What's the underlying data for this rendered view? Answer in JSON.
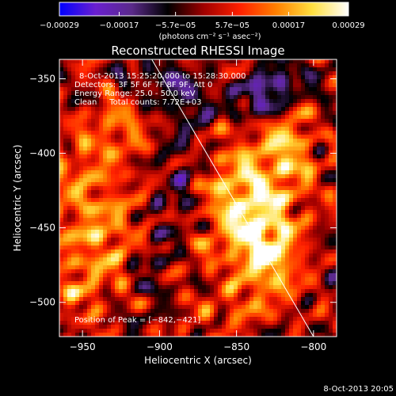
{
  "chart_data": {
    "type": "heatmap",
    "title": "Reconstructed RHESSI Image",
    "xlabel": "Heliocentric X (arcsec)",
    "ylabel": "Heliocentric Y (arcsec)",
    "xlim": [
      -965,
      -785
    ],
    "ylim": [
      -523,
      -337
    ],
    "x_ticks": [
      -950,
      -900,
      -850,
      -800
    ],
    "x_tick_labels": [
      "−950",
      "−900",
      "−850",
      "−800"
    ],
    "y_ticks": [
      -350,
      -400,
      -450,
      -500
    ],
    "y_tick_labels": [
      "−350",
      "−400",
      "−450",
      "−500"
    ],
    "colorbar": {
      "min": -0.00029,
      "max": 0.00029,
      "ticks": [
        -0.00029,
        -0.00017,
        -5.7e-05,
        5.7e-05,
        0.00017,
        0.00029
      ],
      "tick_labels": [
        "−0.00029",
        "−0.00017",
        "−5.7e−05",
        "5.7e−05",
        "0.00017",
        "0.00029"
      ],
      "unit_label": "(photons cm⁻² s⁻¹ asec⁻²)",
      "colors": [
        "#0000ff",
        "#6a1fd0",
        "#5a2a8a",
        "#000000",
        "#a00000",
        "#ff2000",
        "#ff8000",
        "#ffe040",
        "#ffffff"
      ]
    },
    "annotations": [
      "8-Oct-2013 15:25:20.000 to 15:28:30.000",
      "Detectors: 3F 5F 6F 7F 8F 9F, Att 0",
      "Energy Range: 25.0 - 50.0 keV",
      "Clean     Total counts: 7.72E+03"
    ],
    "peak_label": "Position of Peak = [−842,−421]",
    "peak": {
      "x": -842,
      "y": -421
    },
    "limb_line": [
      {
        "x": -905,
        "y": -337
      },
      {
        "x": -800,
        "y": -523
      }
    ],
    "sources": [
      {
        "x": -840,
        "y": -430,
        "amp": 0.00025,
        "sx": 22,
        "sy": 30
      },
      {
        "x": -830,
        "y": -470,
        "amp": 0.00018,
        "sx": 14,
        "sy": 18
      },
      {
        "x": -815,
        "y": -390,
        "amp": 0.00012,
        "sx": 10,
        "sy": 18
      },
      {
        "x": -940,
        "y": -450,
        "amp": 0.00013,
        "sx": 26,
        "sy": 26
      },
      {
        "x": -945,
        "y": -400,
        "amp": 0.0001,
        "sx": 18,
        "sy": 18
      },
      {
        "x": -950,
        "y": -490,
        "amp": 0.0001,
        "sx": 16,
        "sy": 18
      },
      {
        "x": -925,
        "y": -380,
        "amp": 9e-05,
        "sx": 12,
        "sy": 12
      },
      {
        "x": -850,
        "y": -505,
        "amp": 0.0001,
        "sx": 16,
        "sy": 10
      },
      {
        "x": -880,
        "y": -470,
        "amp": 6e-05,
        "sx": 12,
        "sy": 12
      },
      {
        "x": -835,
        "y": -365,
        "amp": -0.0002,
        "sx": 12,
        "sy": 10
      },
      {
        "x": -820,
        "y": -350,
        "amp": -0.00012,
        "sx": 10,
        "sy": 8
      },
      {
        "x": -885,
        "y": -420,
        "amp": -0.0001,
        "sx": 12,
        "sy": 30
      },
      {
        "x": -905,
        "y": -475,
        "amp": -0.0001,
        "sx": 10,
        "sy": 18
      },
      {
        "x": -880,
        "y": -360,
        "amp": -8e-05,
        "sx": 14,
        "sy": 12
      },
      {
        "x": -905,
        "y": -350,
        "amp": -6e-05,
        "sx": 12,
        "sy": 10
      }
    ]
  },
  "footer": {
    "date": "8-Oct-2013 20:05"
  }
}
